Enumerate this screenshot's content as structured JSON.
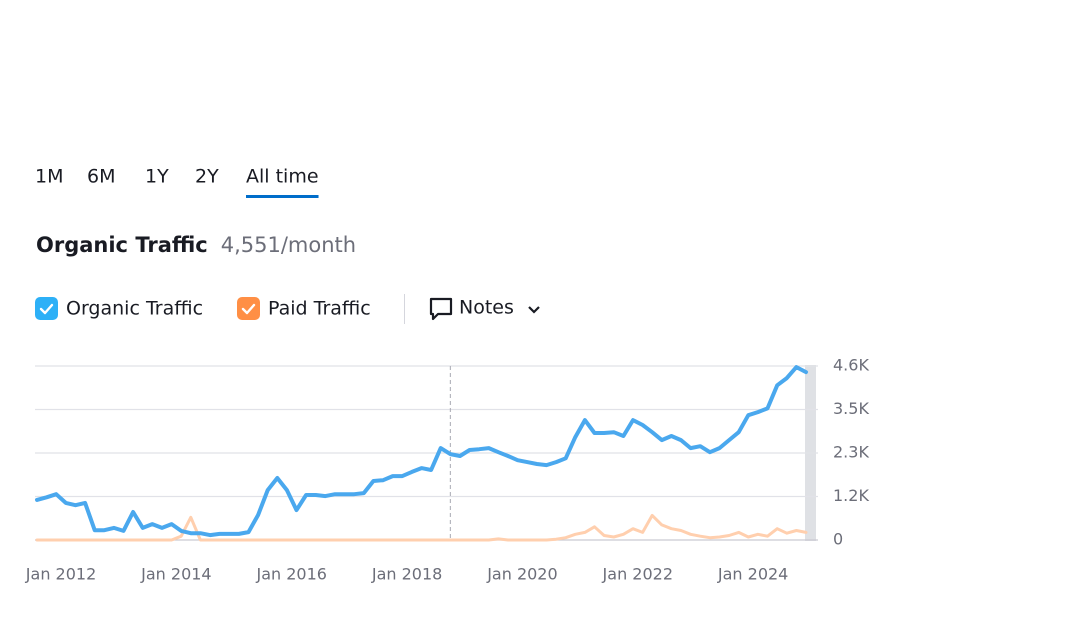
{
  "tabs": [
    "1M",
    "6M",
    "1Y",
    "2Y",
    "All time"
  ],
  "active_tab": 4,
  "summary": {
    "label": "Organic Traffic",
    "value": "4,551",
    "unit": "/month"
  },
  "notes_button": "Notes",
  "chart_data": {
    "type": "line",
    "x": [
      "2011-08",
      "2011-10",
      "2011-12",
      "2012-02",
      "2012-04",
      "2012-06",
      "2012-08",
      "2012-10",
      "2012-12",
      "2013-02",
      "2013-04",
      "2013-06",
      "2013-08",
      "2013-10",
      "2013-12",
      "2014-02",
      "2014-04",
      "2014-06",
      "2014-08",
      "2014-10",
      "2014-12",
      "2015-02",
      "2015-04",
      "2015-06",
      "2015-08",
      "2015-10",
      "2015-12",
      "2016-02",
      "2016-04",
      "2016-06",
      "2016-08",
      "2016-10",
      "2016-12",
      "2017-02",
      "2017-04",
      "2017-06",
      "2017-08",
      "2017-10",
      "2017-12",
      "2018-02",
      "2018-04",
      "2018-06",
      "2018-08",
      "2018-10",
      "2018-12",
      "2019-02",
      "2019-04",
      "2019-06",
      "2019-08",
      "2019-10",
      "2019-12",
      "2020-02",
      "2020-04",
      "2020-06",
      "2020-08",
      "2020-10",
      "2020-12",
      "2021-02",
      "2021-04",
      "2021-06",
      "2021-08",
      "2021-10",
      "2021-12",
      "2022-02",
      "2022-04",
      "2022-06",
      "2022-08",
      "2022-10",
      "2022-12",
      "2023-02",
      "2023-04",
      "2023-06",
      "2023-08",
      "2023-10",
      "2023-12",
      "2024-02",
      "2024-04",
      "2024-06",
      "2024-08",
      "2024-10",
      "2024-12"
    ],
    "series": [
      {
        "name": "Organic Traffic",
        "color": "#4aa8ee",
        "checkbox_color": "#2db0f7",
        "values": [
          1060,
          1130,
          1210,
          980,
          920,
          980,
          260,
          260,
          320,
          240,
          740,
          320,
          420,
          320,
          420,
          240,
          180,
          180,
          130,
          160,
          160,
          160,
          210,
          660,
          1320,
          1640,
          1320,
          790,
          1190,
          1190,
          1160,
          1210,
          1210,
          1210,
          1240,
          1560,
          1580,
          1690,
          1690,
          1800,
          1900,
          1850,
          2430,
          2270,
          2220,
          2380,
          2400,
          2430,
          2320,
          2220,
          2110,
          2060,
          2010,
          1980,
          2060,
          2160,
          2720,
          3170,
          2830,
          2830,
          2850,
          2750,
          3170,
          3040,
          2850,
          2640,
          2750,
          2640,
          2430,
          2480,
          2320,
          2430,
          2640,
          2850,
          3300,
          3380,
          3480,
          4090,
          4280,
          4570,
          4440
        ]
      },
      {
        "name": "Paid Traffic",
        "color": "#ffcfae",
        "checkbox_color": "#ff8f45",
        "values": [
          0,
          0,
          0,
          0,
          0,
          0,
          0,
          0,
          0,
          0,
          0,
          0,
          0,
          0,
          0,
          100,
          600,
          0,
          0,
          0,
          0,
          0,
          0,
          0,
          0,
          0,
          0,
          0,
          0,
          0,
          0,
          0,
          0,
          0,
          0,
          0,
          0,
          0,
          0,
          0,
          0,
          0,
          0,
          0,
          0,
          0,
          0,
          0,
          30,
          0,
          0,
          0,
          0,
          0,
          20,
          60,
          150,
          200,
          350,
          120,
          80,
          150,
          300,
          200,
          650,
          400,
          300,
          250,
          150,
          100,
          60,
          80,
          120,
          200,
          80,
          150,
          100,
          300,
          180,
          250,
          200
        ]
      }
    ],
    "xlim": [
      "2011-08",
      "2024-12"
    ],
    "xticks": [
      {
        "value": "2012-01",
        "label": "Jan 2012"
      },
      {
        "value": "2014-01",
        "label": "Jan 2014"
      },
      {
        "value": "2016-01",
        "label": "Jan 2016"
      },
      {
        "value": "2018-01",
        "label": "Jan 2018"
      },
      {
        "value": "2020-01",
        "label": "Jan 2020"
      },
      {
        "value": "2022-01",
        "label": "Jan 2022"
      },
      {
        "value": "2024-01",
        "label": "Jan 2024"
      }
    ],
    "ylim": [
      0,
      4600
    ],
    "yticks": [
      0,
      {
        "value": 1150,
        "label": "1.2K"
      },
      {
        "value": 2300,
        "label": "2.3K"
      },
      {
        "value": 3450,
        "label": "3.5K"
      },
      {
        "value": 4600,
        "label": "4.6K"
      }
    ],
    "grid": true,
    "reference_line_x": "2018-10"
  }
}
